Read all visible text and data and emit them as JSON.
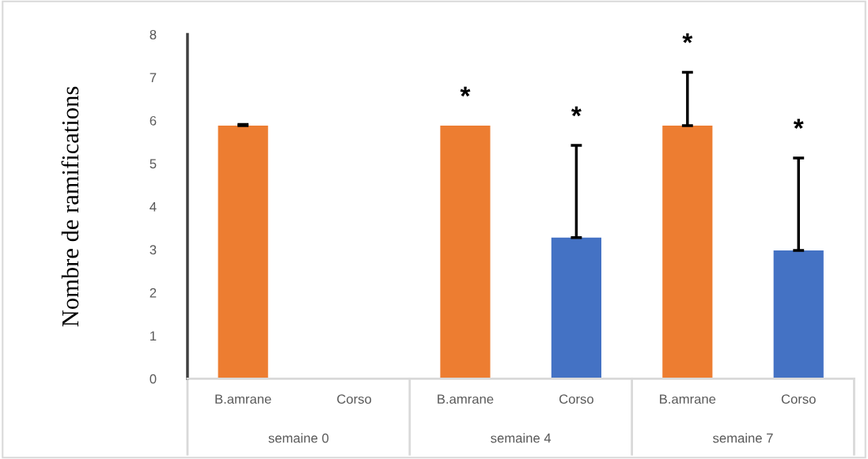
{
  "chart_data": {
    "type": "bar",
    "ylabel": "Nombre de ramifications",
    "categories": [
      "B.amrane",
      "Corso",
      "B.amrane",
      "Corso",
      "B.amrane",
      "Corso"
    ],
    "values": [
      5.88,
      null,
      5.88,
      3.28,
      5.88,
      2.98
    ],
    "colors": [
      "#ed7d31",
      "#4472c4",
      "#ed7d31",
      "#4472c4",
      "#ed7d31",
      "#4472c4"
    ],
    "errors": [
      [
        5.88,
        5.91
      ],
      null,
      null,
      [
        3.28,
        5.42
      ],
      [
        5.88,
        7.12
      ],
      [
        2.98,
        5.13
      ]
    ],
    "annotations": [
      "semaine 0",
      "semaine 4",
      "semaine 7",
      "*",
      "*",
      "*",
      "*"
    ],
    "ylim": [
      0,
      8
    ],
    "yticks": [
      0,
      1,
      2,
      3,
      4,
      5,
      6,
      7,
      8
    ],
    "grid": false,
    "legend": false
  }
}
